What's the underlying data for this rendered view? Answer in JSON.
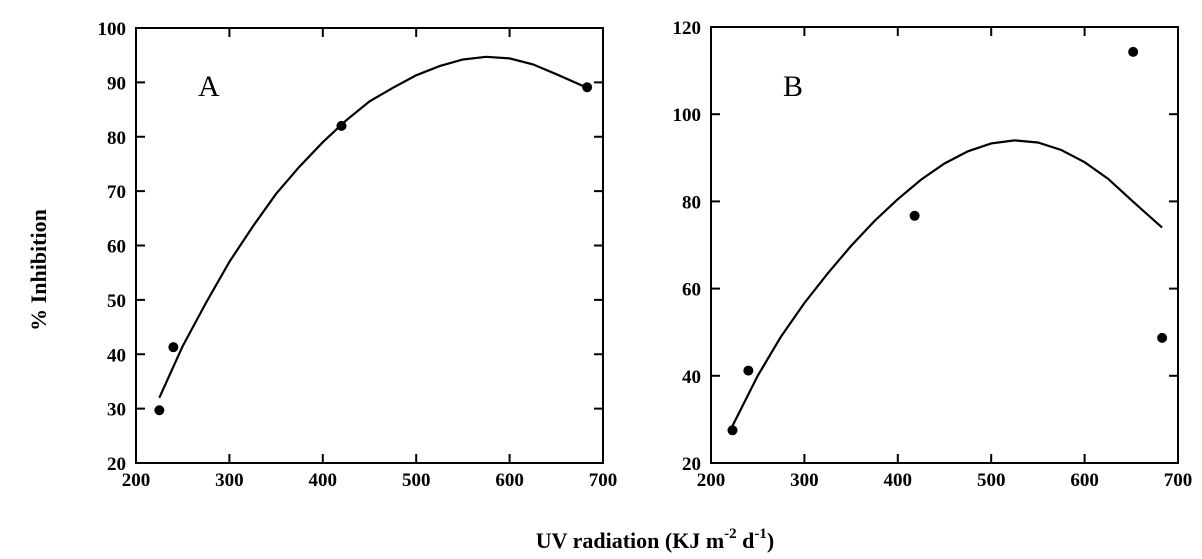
{
  "chart_data": [
    {
      "type": "scatter",
      "panel_label": "A",
      "xlim": [
        200,
        700
      ],
      "ylim": [
        20,
        100
      ],
      "xticks": [
        200,
        300,
        400,
        500,
        600,
        700
      ],
      "yticks": [
        20,
        30,
        40,
        50,
        60,
        70,
        80,
        90,
        100
      ],
      "points": [
        {
          "x": 225,
          "y": 29.7
        },
        {
          "x": 240,
          "y": 41.3
        },
        {
          "x": 420,
          "y": 82.0
        },
        {
          "x": 683,
          "y": 89.1
        }
      ],
      "fit_curve": {
        "kind": "quadratic",
        "x": [
          225,
          250,
          275,
          300,
          325,
          350,
          375,
          400,
          425,
          450,
          475,
          500,
          525,
          550,
          575,
          600,
          625,
          650,
          683
        ],
        "y": [
          32.0,
          41.5,
          49.5,
          57.0,
          63.5,
          69.5,
          74.5,
          79.0,
          83.0,
          86.5,
          89.0,
          91.3,
          93.0,
          94.2,
          94.7,
          94.4,
          93.3,
          91.5,
          89.0
        ]
      }
    },
    {
      "type": "scatter",
      "panel_label": "B",
      "xlim": [
        200,
        700
      ],
      "ylim": [
        20,
        120
      ],
      "xticks": [
        200,
        300,
        400,
        500,
        600,
        700
      ],
      "yticks": [
        20,
        40,
        60,
        80,
        100,
        120
      ],
      "points": [
        {
          "x": 223,
          "y": 27.5
        },
        {
          "x": 240,
          "y": 41.2
        },
        {
          "x": 418,
          "y": 76.7
        },
        {
          "x": 652,
          "y": 114.3
        },
        {
          "x": 683,
          "y": 48.7
        }
      ],
      "fit_curve": {
        "kind": "quadratic",
        "x": [
          223,
          250,
          275,
          300,
          325,
          350,
          375,
          400,
          425,
          450,
          475,
          500,
          525,
          550,
          575,
          600,
          625,
          650,
          683
        ],
        "y": [
          28.5,
          40.0,
          49.0,
          56.7,
          63.5,
          69.8,
          75.5,
          80.5,
          85.0,
          88.7,
          91.5,
          93.3,
          94.0,
          93.5,
          91.8,
          89.0,
          85.2,
          80.3,
          74.0
        ]
      }
    }
  ],
  "y_axis_title": "% Inhibition",
  "x_axis_title": {
    "main": "UV radiation (KJ m",
    "sup1": "-2",
    "mid": " d",
    "sup2": "-1",
    "end": ")"
  }
}
